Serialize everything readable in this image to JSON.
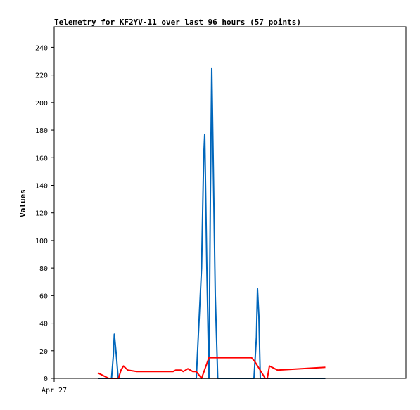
{
  "chart_data": {
    "type": "line",
    "title": "Telemetry for KF2YV-11 over last 96 hours (57 points)",
    "xlabel": "",
    "ylabel": "Values",
    "x_tick_labels": [
      "Apr 27"
    ],
    "ylim": [
      0,
      255
    ],
    "y_ticks": [
      0,
      20,
      40,
      60,
      80,
      100,
      120,
      140,
      160,
      180,
      200,
      220,
      240
    ],
    "grid": false,
    "legend": "none",
    "xrange_fraction": [
      0,
      1
    ],
    "series": [
      {
        "color": "#0066bb",
        "x": [
          0.124,
          0.163,
          0.168,
          0.171,
          0.177,
          0.182,
          0.188,
          0.191,
          0.197,
          0.404,
          0.419,
          0.425,
          0.428,
          0.434,
          0.44,
          0.444,
          0.448,
          0.452,
          0.458,
          0.465,
          0.47,
          0.568,
          0.575,
          0.578,
          0.582,
          0.586,
          0.6,
          0.606,
          0.771
        ],
        "values": [
          0,
          0,
          16,
          32,
          16,
          0,
          0,
          0,
          0,
          0,
          80,
          160,
          177,
          80,
          0,
          130,
          225,
          160,
          60,
          0,
          0,
          0,
          30,
          65,
          45,
          0,
          0,
          0,
          0
        ]
      },
      {
        "color": "#ff0000",
        "x": [
          0.124,
          0.155,
          0.183,
          0.19,
          0.197,
          0.209,
          0.235,
          0.262,
          0.297,
          0.338,
          0.346,
          0.36,
          0.367,
          0.38,
          0.394,
          0.404,
          0.419,
          0.44,
          0.458,
          0.472,
          0.55,
          0.561,
          0.571,
          0.6,
          0.606,
          0.612,
          0.635,
          0.771
        ],
        "values": [
          4,
          0,
          0,
          6,
          9,
          6,
          5,
          5,
          5,
          5,
          6,
          6,
          5,
          7,
          5,
          5,
          0,
          15,
          15,
          15,
          15,
          15,
          12,
          0,
          0,
          9,
          6,
          8
        ]
      },
      {
        "color": "#000000",
        "x": [
          0.124,
          0.771
        ],
        "values": [
          0,
          0
        ]
      }
    ]
  }
}
